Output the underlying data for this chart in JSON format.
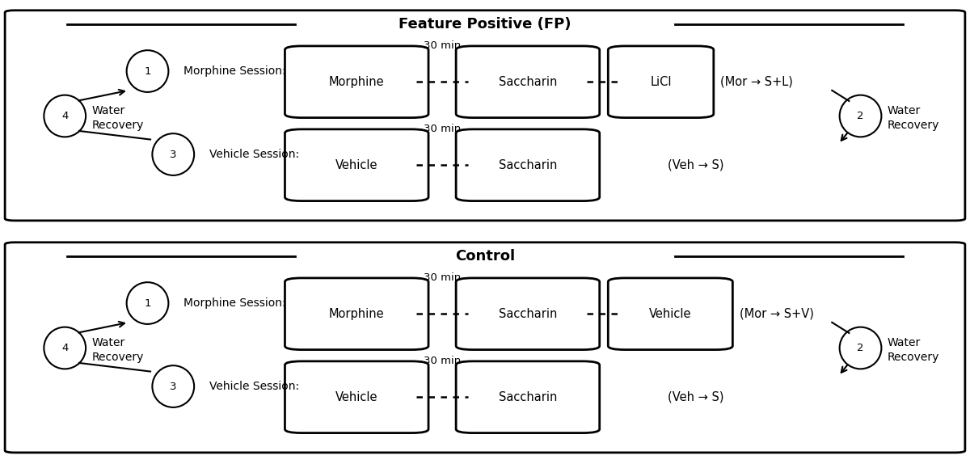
{
  "panel1_title": "Feature Positive (FP)",
  "panel2_title": "Control",
  "bg_color": "#ffffff",
  "panel1": {
    "morphine_row": {
      "session_label": "Morphine Session:",
      "boxes": [
        "Morphine",
        "Saccharin",
        "LiCl"
      ],
      "time_label": "30 min",
      "formula": "(Mor → S+L)",
      "third_box_small": true
    },
    "vehicle_row": {
      "session_label": "Vehicle Session:",
      "boxes": [
        "Vehicle",
        "Saccharin"
      ],
      "time_label": "30 min",
      "formula": "(Veh → S)"
    },
    "water_recovery": "Water\nRecovery"
  },
  "panel2": {
    "morphine_row": {
      "session_label": "Morphine Session:",
      "boxes": [
        "Morphine",
        "Saccharin",
        "Vehicle"
      ],
      "time_label": "30 min",
      "formula": "(Mor → S+V)",
      "third_box_small": false
    },
    "vehicle_row": {
      "session_label": "Vehicle Session:",
      "boxes": [
        "Vehicle",
        "Saccharin"
      ],
      "time_label": "30 min",
      "formula": "(Veh → S)"
    },
    "water_recovery": "Water\nRecovery"
  }
}
